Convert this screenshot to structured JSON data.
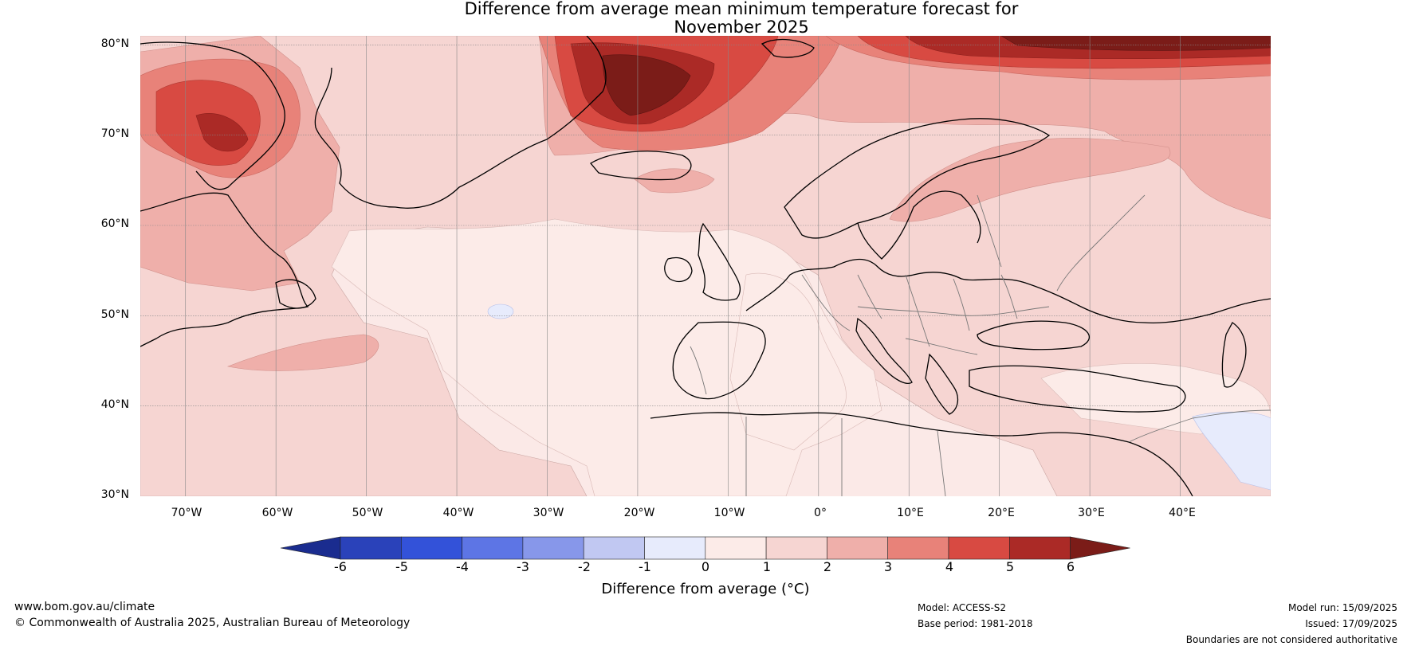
{
  "title": {
    "line1": "Difference from average mean minimum temperature forecast for",
    "line2": "November 2025"
  },
  "map": {
    "lat_labels": [
      "80°N",
      "70°N",
      "60°N",
      "50°N",
      "40°N",
      "30°N"
    ],
    "lon_labels": [
      "70°W",
      "60°W",
      "50°W",
      "40°W",
      "30°W",
      "20°W",
      "10°W",
      "0°",
      "10°E",
      "20°E",
      "30°E",
      "40°E"
    ],
    "extent": {
      "lon_min": -75,
      "lon_max": 50,
      "lat_min": 30,
      "lat_max": 81
    },
    "colors": {
      "ocean_base": "#fbe9e7",
      "land_base": "#f6d5d2",
      "level_0_1": "#fcebe8",
      "level_1_2": "#f6d5d2",
      "level_2_3": "#efafaa",
      "level_3_4": "#e88279",
      "level_4_5": "#d84a42",
      "level_5_6": "#ab2a26",
      "level_6_plus": "#7b1c18",
      "negative_small": "#e7ebfc",
      "coastline": "#000000",
      "border": "#777777",
      "grid": "#888888"
    }
  },
  "colorbar": {
    "label": "Difference from average (°C)",
    "ticks": [
      "-6",
      "-5",
      "-4",
      "-3",
      "-2",
      "-1",
      "0",
      "1",
      "2",
      "3",
      "4",
      "5",
      "6"
    ],
    "colors": [
      "#1a2c8f",
      "#2a42ba",
      "#3352d9",
      "#5d75e5",
      "#8797ea",
      "#c1c8f2",
      "#e7ebfc",
      "#fcebe8",
      "#f6d5d2",
      "#efafaa",
      "#e88279",
      "#d84a42",
      "#ab2a26",
      "#7b1c18"
    ]
  },
  "footer": {
    "website": "www.bom.gov.au/climate",
    "copyright": "© Commonwealth of Australia 2025, Australian Bureau of Meteorology",
    "model": "Model: ACCESS-S2",
    "base_period": "Base period: 1981-2018",
    "model_run": "Model run: 15/09/2025",
    "issued": "Issued: 17/09/2025",
    "disclaimer": "Boundaries are not considered authoritative"
  }
}
